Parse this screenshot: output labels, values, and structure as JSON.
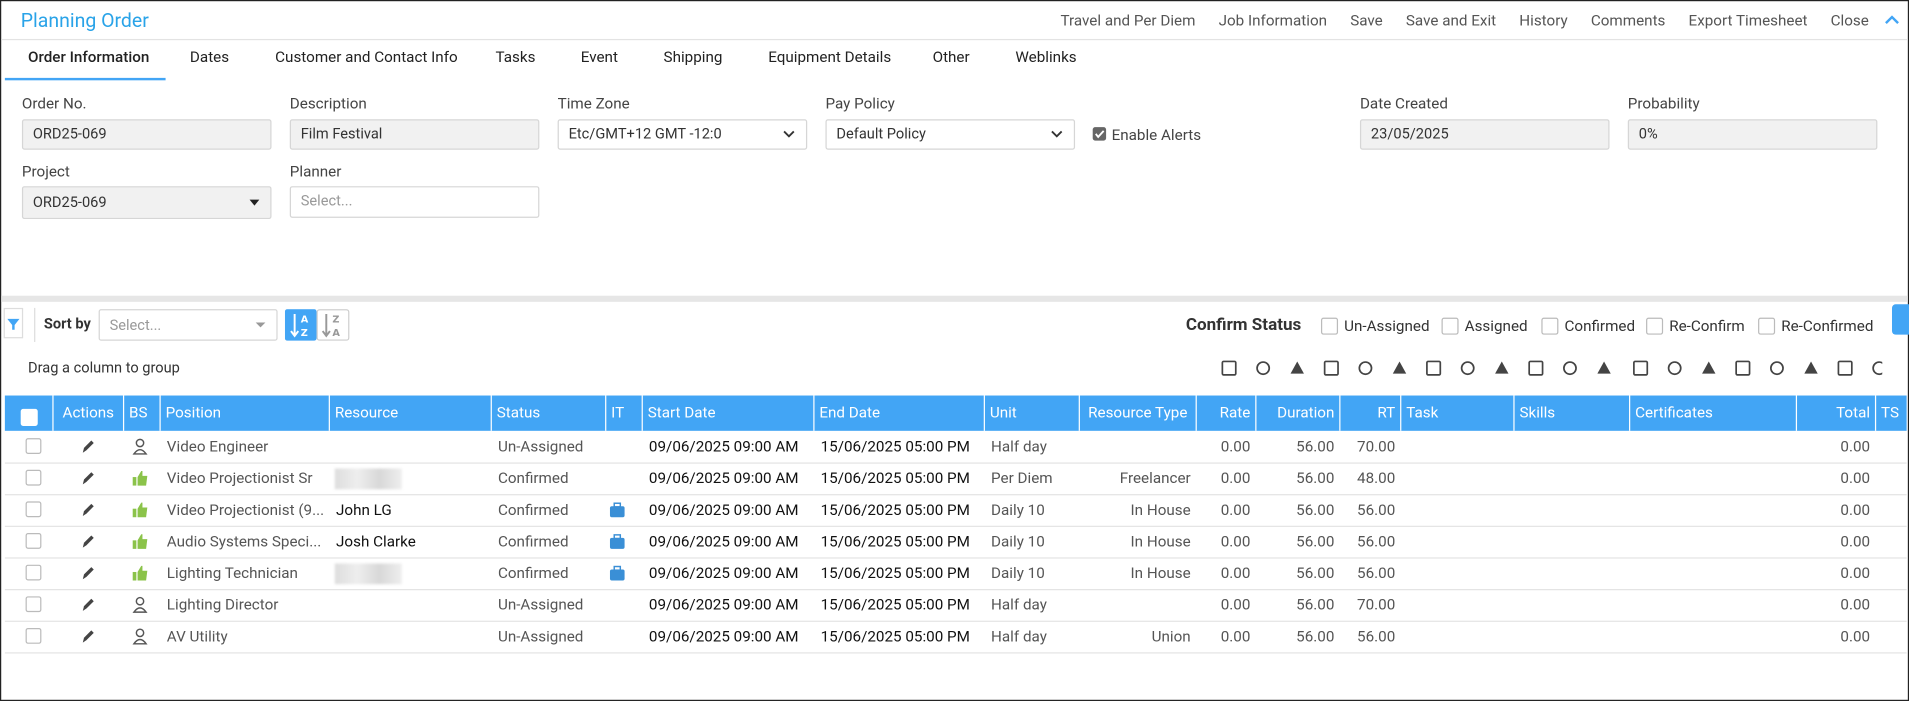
{
  "header": {
    "title": "Planning Order",
    "actions": [
      "Travel and Per Diem",
      "Job Information",
      "Save",
      "Save and Exit",
      "History",
      "Comments",
      "Export Timesheet",
      "Close"
    ]
  },
  "tabs": [
    "Order Information",
    "Dates",
    "Customer and Contact Info",
    "Tasks",
    "Event",
    "Shipping",
    "Equipment Details",
    "Other",
    "Weblinks"
  ],
  "form": {
    "order_no": {
      "label": "Order No.",
      "value": "ORD25-069"
    },
    "description": {
      "label": "Description",
      "value": "Film Festival"
    },
    "time_zone": {
      "label": "Time Zone",
      "value": "Etc/GMT+12 GMT -12:0"
    },
    "pay_policy": {
      "label": "Pay Policy",
      "value": "Default Policy"
    },
    "enable_alerts": "Enable Alerts",
    "date_created": {
      "label": "Date Created",
      "value": "23/05/2025"
    },
    "probability": {
      "label": "Probability",
      "value": "0%"
    },
    "project": {
      "label": "Project",
      "value": "ORD25-069"
    },
    "planner": {
      "label": "Planner",
      "placeholder": "Select..."
    }
  },
  "grid": {
    "sort_label": "Sort by",
    "sort_placeholder": "Select...",
    "confirm_status": {
      "title": "Confirm Status",
      "options": [
        "Un-Assigned",
        "Assigned",
        "Confirmed",
        "Re-Confirm",
        "Re-Confirmed"
      ]
    },
    "group_hint": "Drag a column to group",
    "columns": [
      "Actions",
      "BS",
      "Position",
      "Resource",
      "Status",
      "IT",
      "Start Date",
      "End Date",
      "Unit",
      "Resource Type",
      "Rate",
      "Duration",
      "RT",
      "Task",
      "Skills",
      "Certificates",
      "Total",
      "TS"
    ],
    "rows": [
      {
        "position": "Video Engineer",
        "resource": null,
        "status": "Un-Assigned",
        "start": "09/06/2025 09:00 AM",
        "end": "15/06/2025 05:00 PM",
        "unit": "Half day",
        "resource_type": null,
        "rate": "0.00",
        "duration": "56.00",
        "rt": "70.00",
        "total": "0.00"
      },
      {
        "position": "Video Projectionist Sr",
        "resource": null,
        "status": "Confirmed",
        "start": "09/06/2025 09:00 AM",
        "end": "15/06/2025 05:00 PM",
        "unit": "Per Diem",
        "resource_type": "Freelancer",
        "rate": "0.00",
        "duration": "56.00",
        "rt": "48.00",
        "total": "0.00"
      },
      {
        "position": "Video Projectionist (9...",
        "resource": "John LG",
        "status": "Confirmed",
        "start": "09/06/2025 09:00 AM",
        "end": "15/06/2025 05:00 PM",
        "unit": "Daily 10",
        "resource_type": "In House",
        "rate": "0.00",
        "duration": "56.00",
        "rt": "56.00",
        "total": "0.00"
      },
      {
        "position": "Audio Systems Speci...",
        "resource": "Josh Clarke",
        "status": "Confirmed",
        "start": "09/06/2025 09:00 AM",
        "end": "15/06/2025 05:00 PM",
        "unit": "Daily 10",
        "resource_type": "In House",
        "rate": "0.00",
        "duration": "56.00",
        "rt": "56.00",
        "total": "0.00"
      },
      {
        "position": "Lighting Technician",
        "resource": null,
        "status": "Confirmed",
        "start": "09/06/2025 09:00 AM",
        "end": "15/06/2025 05:00 PM",
        "unit": "Daily 10",
        "resource_type": "In House",
        "rate": "0.00",
        "duration": "56.00",
        "rt": "56.00",
        "total": "0.00"
      },
      {
        "position": "Lighting Director",
        "resource": null,
        "status": "Un-Assigned",
        "start": "09/06/2025 09:00 AM",
        "end": "15/06/2025 05:00 PM",
        "unit": "Half day",
        "resource_type": null,
        "rate": "0.00",
        "duration": "56.00",
        "rt": "70.00",
        "total": "0.00"
      },
      {
        "position": "AV Utility",
        "resource": null,
        "status": "Un-Assigned",
        "start": "09/06/2025 09:00 AM",
        "end": "15/06/2025 05:00 PM",
        "unit": "Half day",
        "resource_type": "Union",
        "rate": "0.00",
        "duration": "56.00",
        "rt": "56.00",
        "total": "0.00"
      }
    ]
  }
}
